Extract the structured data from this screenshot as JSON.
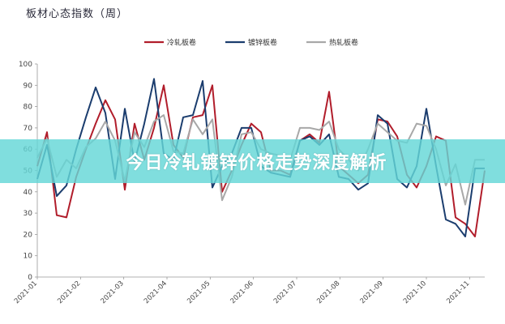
{
  "chart_data": {
    "type": "line",
    "title": "板材心态指数（周）",
    "ylim": [
      0,
      100
    ],
    "yticks": [
      0,
      10,
      20,
      30,
      40,
      50,
      60,
      70,
      80,
      90,
      100
    ],
    "x_ticks": [
      "2021-01",
      "2021-02",
      "2021-03",
      "2021-04",
      "2021-05",
      "2021-06",
      "2021-07",
      "2021-08",
      "2021-09",
      "2021-10",
      "2021-11"
    ],
    "grid": false,
    "legend_position": "top",
    "series": [
      {
        "name": "冷轧板卷",
        "color": "#b11d2b",
        "values": [
          52,
          68,
          29,
          28,
          47,
          60,
          72,
          83,
          74,
          41,
          72,
          55,
          70,
          90,
          62,
          56,
          75,
          76,
          90,
          40,
          50,
          62,
          72,
          68,
          50,
          50,
          48,
          64,
          67,
          63,
          87,
          52,
          48,
          44,
          48,
          74,
          73,
          66,
          48,
          42,
          52,
          66,
          64,
          28,
          25,
          19,
          50
        ]
      },
      {
        "name": "镀锌板卷",
        "color": "#1b3d6e",
        "values": [
          46,
          62,
          38,
          43,
          60,
          75,
          89,
          77,
          46,
          79,
          54,
          72,
          93,
          58,
          55,
          75,
          76,
          92,
          42,
          52,
          58,
          70,
          70,
          52,
          49,
          48,
          47,
          64,
          66,
          62,
          67,
          47,
          46,
          41,
          44,
          76,
          72,
          46,
          42,
          52,
          79,
          52,
          27,
          25,
          19,
          51,
          51
        ]
      },
      {
        "name": "热轧板卷",
        "color": "#a8a8a8",
        "values": [
          56,
          65,
          47,
          55,
          51,
          61,
          65,
          73,
          64,
          45,
          68,
          61,
          73,
          76,
          59,
          58,
          74,
          67,
          74,
          36,
          47,
          67,
          68,
          60,
          58,
          57,
          55,
          70,
          70,
          69,
          73,
          60,
          55,
          50,
          60,
          72,
          68,
          64,
          63,
          72,
          71,
          60,
          43,
          53,
          34,
          55,
          55
        ]
      }
    ]
  },
  "banner": {
    "text": "今日冷轧镀锌价格走势深度解析"
  }
}
